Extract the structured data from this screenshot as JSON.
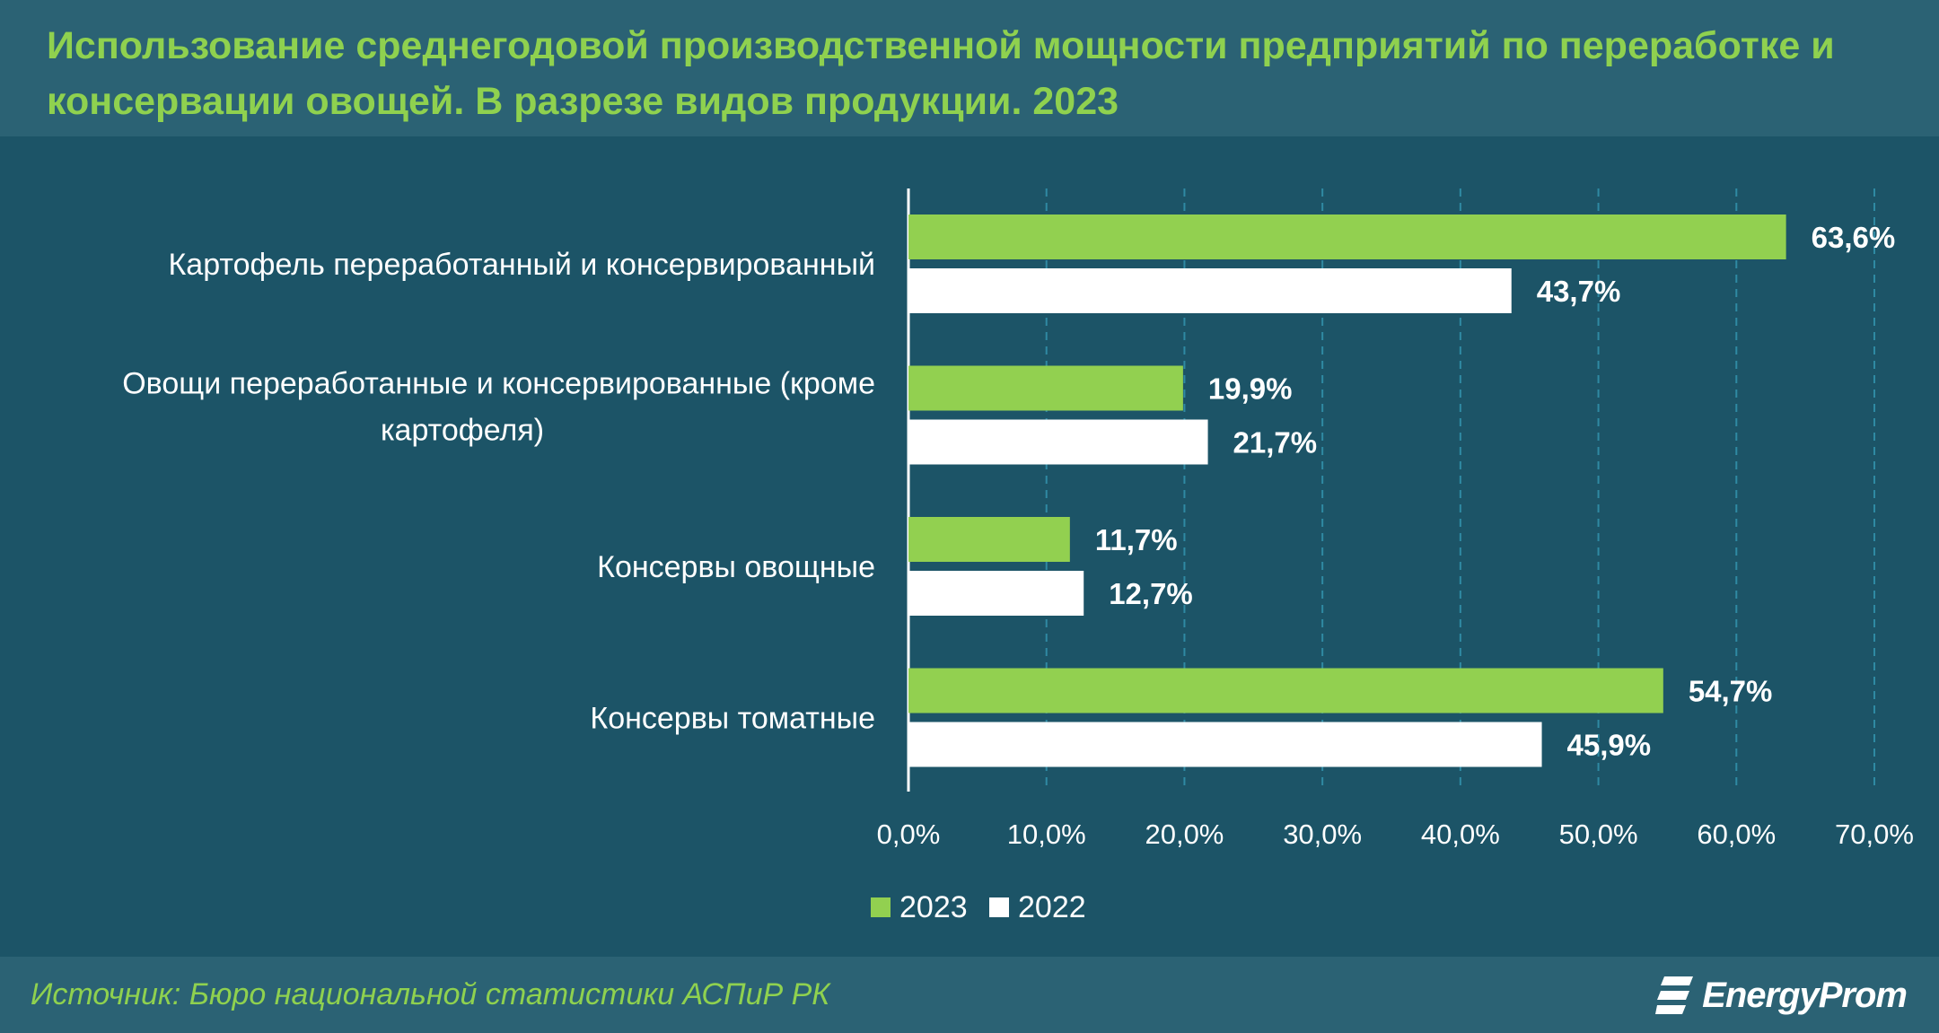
{
  "title": "Использование среднегодовой производственной мощности предприятий по переработке и консервации овощей. В разрезе видов продукции. 2023",
  "source": "Источник: Бюро национальной статистики АСПиР РК",
  "logo_text": "EnergyProm",
  "colors": {
    "background": "#1c5467",
    "header": "#2b6274",
    "accent": "#8fd14f",
    "series_2023": "#92d050",
    "series_2022": "#ffffff",
    "text": "#ffffff",
    "grid": "#2f8aa3"
  },
  "chart_data": {
    "type": "bar",
    "orientation": "horizontal",
    "categories": [
      "Картофель переработанный и консервированный",
      "Овощи переработанные и консервированные (кроме картофеля)",
      "Консервы овощные",
      "Консервы томатные"
    ],
    "series": [
      {
        "name": "2023",
        "values": [
          63.6,
          19.9,
          11.7,
          54.7
        ],
        "labels": [
          "63,6%",
          "19,9%",
          "11,7%",
          "54,7%"
        ]
      },
      {
        "name": "2022",
        "values": [
          43.7,
          21.7,
          12.7,
          45.9
        ],
        "labels": [
          "43,7%",
          "21,7%",
          "12,7%",
          "45,9%"
        ]
      }
    ],
    "xlim": [
      0,
      70
    ],
    "xticks": [
      0,
      10,
      20,
      30,
      40,
      50,
      60,
      70
    ],
    "xtick_labels": [
      "0,0%",
      "10,0%",
      "20,0%",
      "30,0%",
      "40,0%",
      "50,0%",
      "60,0%",
      "70,0%"
    ],
    "grid": "vertical dashed",
    "legend": "bottom-center"
  }
}
